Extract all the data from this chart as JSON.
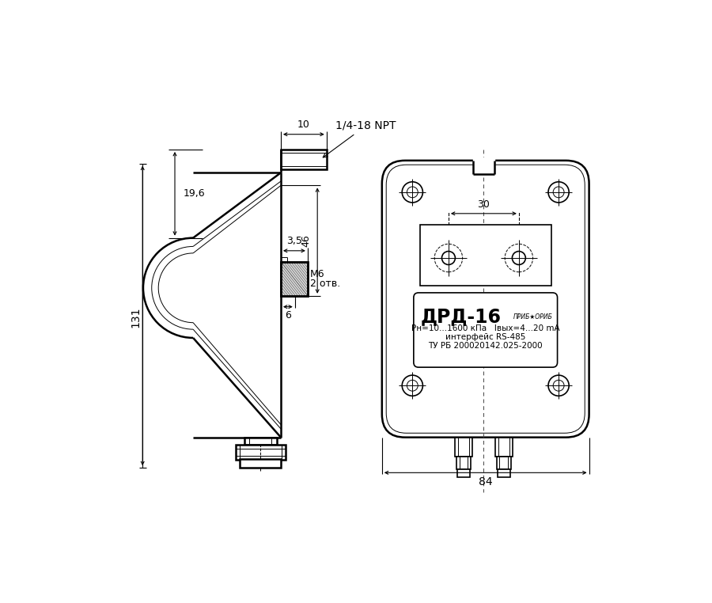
{
  "bg_color": "#ffffff",
  "line_color": "#000000",
  "label_text": "ДРД-16",
  "spec_line1": "Рн=10...1600 кПа   Iвых=4...20 mA",
  "spec_line2": "интерфейс RS-485",
  "spec_line3": "ТУ РБ 200020142.025-2000",
  "npt_label": "1/4-18 NPT",
  "dim_10": "10",
  "dim_196": "19,6",
  "dim_46": "46",
  "dim_35": "3,5",
  "dim_m6": "М6",
  "dim_2otv": "2 отв.",
  "dim_6": "6",
  "dim_131": "131",
  "dim_30": "30",
  "dim_84": "84"
}
